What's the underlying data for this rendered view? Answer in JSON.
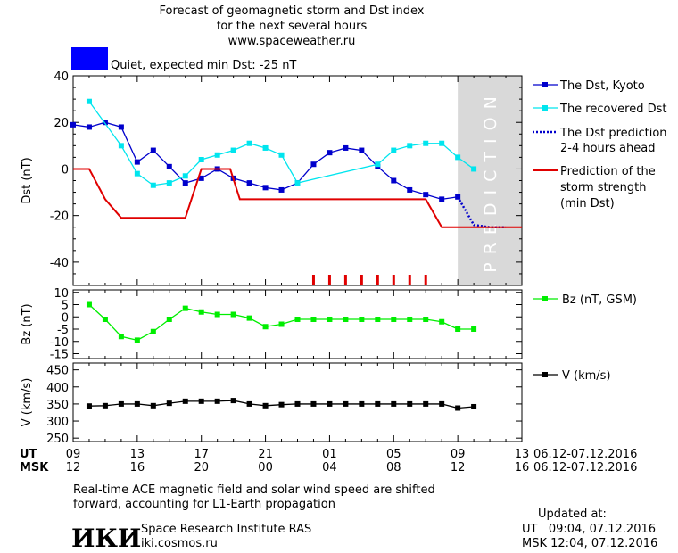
{
  "header": {
    "title_line1": "Forecast of geomagnetic storm and Dst index",
    "title_line2": "for the next several hours",
    "title_line3": "www.spaceweather.ru"
  },
  "status": {
    "swatch_color": "#0000ff",
    "text": "Quiet, expected min Dst: -25 nT"
  },
  "prediction_label": "PREDICTION",
  "footer": {
    "note_line1": "Real-time ACE magnetic field and solar wind speed are shifted",
    "note_line2": "forward, accounting for L1-Earth propagation",
    "institute_logo": "ИКИ",
    "institute_name": "Space Research Institute RAS",
    "institute_url": "iki.cosmos.ru",
    "updated_label": "Updated at:",
    "updated_ut": "UT   09:04, 07.12.2016",
    "updated_msk": "MSK 12:04, 07.12.2016"
  },
  "axis_time": {
    "ut_label": "UT",
    "msk_label": "MSK",
    "ut_ticks": [
      "09",
      "13",
      "17",
      "21",
      "01",
      "05",
      "09",
      "13"
    ],
    "msk_ticks": [
      "12",
      "16",
      "20",
      "00",
      "04",
      "08",
      "12",
      "16"
    ],
    "ut_date_range": "06.12-07.12.2016",
    "msk_date_range": "06.12-07.12.2016"
  },
  "chart_data": [
    {
      "type": "line",
      "panel": "dst",
      "ylabel": "Dst (nT)",
      "x_unit": "hours from 09 UT 06.12.2016",
      "xlim": [
        0,
        28
      ],
      "ylim": [
        -50,
        40
      ],
      "yticks": [
        40,
        20,
        0,
        -20,
        -40
      ],
      "prediction_region": [
        24,
        28
      ],
      "legend": [
        {
          "key": "kyoto",
          "label": "The Dst, Kyoto",
          "color": "#0000cc",
          "style": "line-square"
        },
        {
          "key": "recovered",
          "label": "The recovered Dst",
          "color": "#00e5ee",
          "style": "line-square"
        },
        {
          "key": "prediction",
          "label": "The Dst prediction 2-4 hours ahead",
          "color": "#0000cc",
          "style": "dotted"
        },
        {
          "key": "storm",
          "label": "Prediction of the storm strength (min Dst)",
          "color": "#e00000",
          "style": "line"
        }
      ],
      "series": [
        {
          "name": "The Dst, Kyoto",
          "color": "#0000cc",
          "x": [
            0,
            1,
            2,
            3,
            4,
            5,
            6,
            7,
            8,
            9,
            10,
            11,
            12,
            13,
            14,
            15,
            16,
            17,
            18,
            19,
            20,
            21,
            22,
            23,
            24
          ],
          "y": [
            19,
            18,
            20,
            18,
            3,
            8,
            1,
            -6,
            -4,
            0,
            -4,
            -6,
            -8,
            -9,
            -6,
            2,
            7,
            9,
            8,
            1,
            -5,
            -9,
            -11,
            -13,
            -12
          ]
        },
        {
          "name": "The recovered Dst",
          "color": "#00e5ee",
          "x": [
            1,
            3,
            4,
            5,
            6,
            7,
            8,
            9,
            10,
            11,
            12,
            13,
            14,
            19,
            20,
            21,
            22,
            23,
            24,
            25
          ],
          "y": [
            29,
            10,
            -2,
            -7,
            -6,
            -3,
            4,
            6,
            8,
            11,
            9,
            6,
            -6,
            2,
            8,
            10,
            11,
            11,
            5,
            0
          ]
        },
        {
          "name": "The Dst prediction 2-4 hours ahead",
          "color": "#0000cc",
          "x": [
            24,
            25,
            26,
            27
          ],
          "y": [
            -12,
            -24,
            -25,
            -25
          ]
        },
        {
          "name": "Prediction of the storm strength (min Dst)",
          "color": "#e00000",
          "x": [
            0,
            1,
            2,
            3,
            4,
            5,
            6,
            7,
            8,
            9,
            9.8,
            10.4,
            14,
            15,
            16,
            17,
            18,
            19,
            20,
            21,
            22,
            23,
            24,
            25,
            26,
            27,
            28
          ],
          "y": [
            0,
            0,
            -13,
            -21,
            -21,
            -21,
            -21,
            -21,
            0,
            0,
            0,
            -13,
            -13,
            -13,
            -13,
            -13,
            -13,
            -13,
            -13,
            -13,
            -13,
            -25,
            -25,
            -25,
            -25,
            -25,
            -25
          ]
        }
      ],
      "event_marks_x": [
        15,
        16,
        17,
        18,
        19,
        20,
        21,
        22
      ],
      "event_marks_color": "#e00000"
    },
    {
      "type": "line",
      "panel": "bz",
      "ylabel": "Bz (nT)",
      "x_unit": "hours from 09 UT 06.12.2016",
      "xlim": [
        0,
        28
      ],
      "ylim": [
        -17,
        11
      ],
      "yticks": [
        10,
        5,
        0,
        -5,
        -10,
        -15
      ],
      "legend": [
        {
          "label": "Bz (nT, GSM)",
          "color": "#00ee00"
        }
      ],
      "series": [
        {
          "name": "Bz (nT, GSM)",
          "color": "#00ee00",
          "x": [
            1,
            2,
            3,
            4,
            5,
            6,
            7,
            8,
            9,
            10,
            11,
            12,
            13,
            14,
            15,
            16,
            17,
            18,
            19,
            20,
            21,
            22,
            23,
            24,
            25
          ],
          "y": [
            5,
            -1,
            -8,
            -9.5,
            -6,
            -1,
            3.5,
            2,
            1,
            1,
            -0.5,
            -4,
            -3,
            -1,
            -1,
            -1,
            -1,
            -1,
            -1,
            -1,
            -1,
            -1,
            -2,
            -5,
            -5
          ]
        }
      ]
    },
    {
      "type": "line",
      "panel": "v",
      "ylabel": "V (km/s)",
      "x_unit": "hours from 09 UT 06.12.2016",
      "xlim": [
        0,
        28
      ],
      "ylim": [
        240,
        470
      ],
      "yticks": [
        450,
        400,
        350,
        300,
        250
      ],
      "legend": [
        {
          "label": "V (km/s)",
          "color": "#000000"
        }
      ],
      "series": [
        {
          "name": "V (km/s)",
          "color": "#000000",
          "x": [
            1,
            2,
            3,
            4,
            5,
            6,
            7,
            8,
            9,
            10,
            11,
            12,
            13,
            14,
            15,
            16,
            17,
            18,
            19,
            20,
            21,
            22,
            23,
            24,
            25
          ],
          "y": [
            344,
            345,
            350,
            350,
            345,
            352,
            358,
            358,
            358,
            360,
            350,
            345,
            348,
            350,
            350,
            350,
            350,
            350,
            350,
            350,
            350,
            350,
            350,
            338,
            342
          ]
        }
      ]
    }
  ]
}
